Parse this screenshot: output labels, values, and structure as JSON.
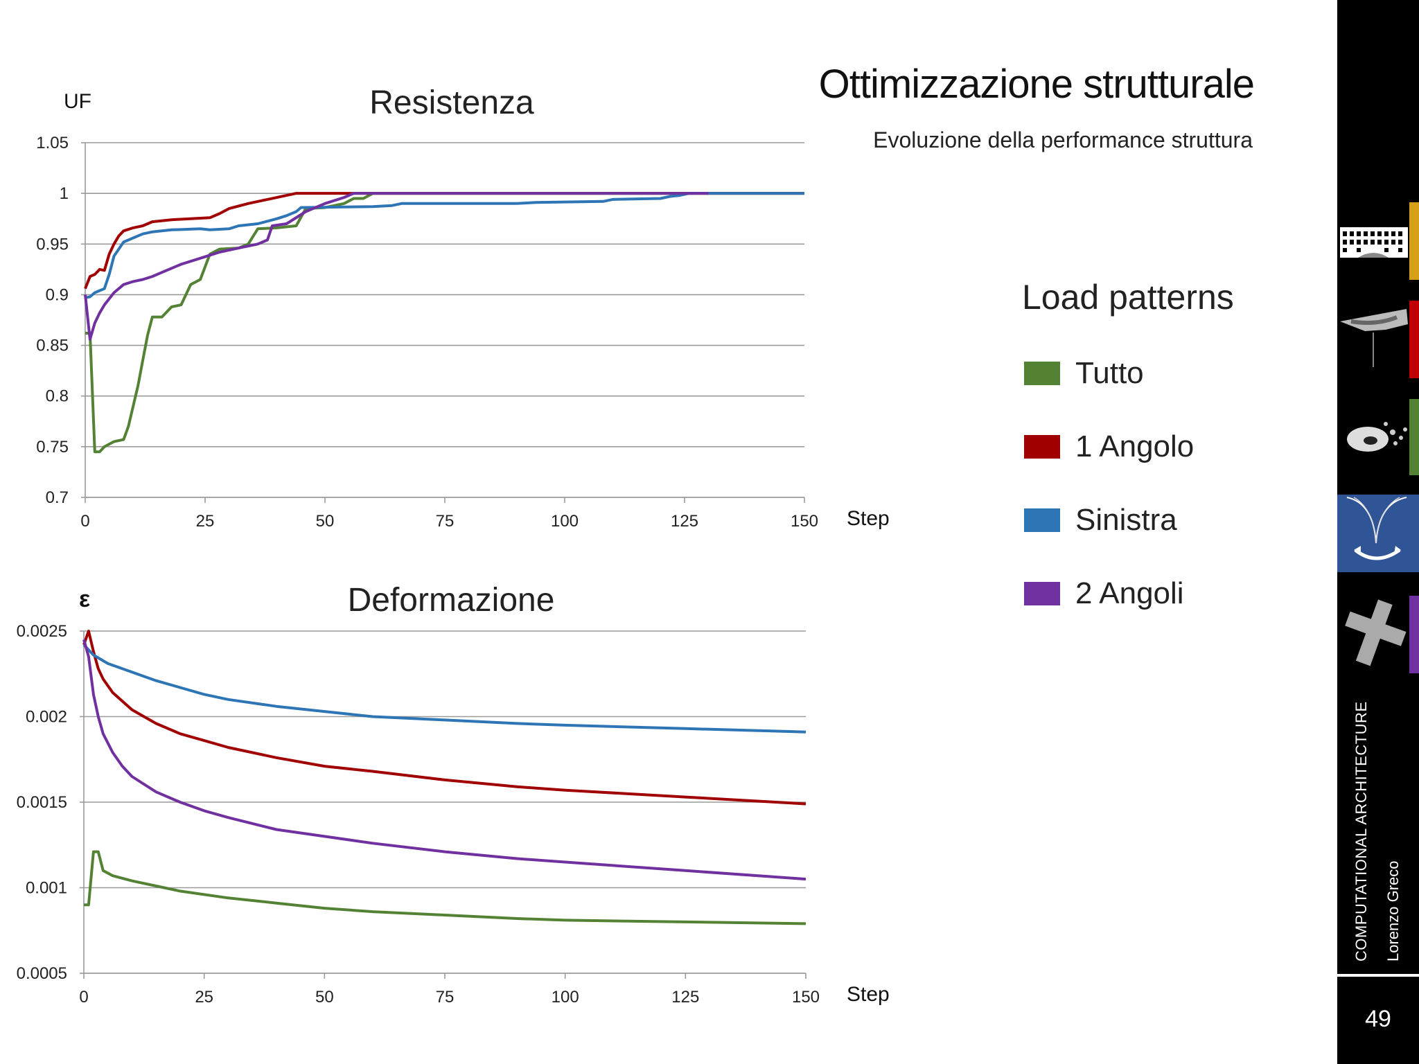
{
  "slide": {
    "title": "Ottimizzazione strutturale",
    "subtitle": "Evoluzione della performance struttura",
    "page_number": "49",
    "sidebar_course": "COMPUTATIONAL ARCHITECTURE",
    "sidebar_author": "Lorenzo Greco"
  },
  "legend": {
    "title": "Load patterns",
    "items": [
      {
        "label": "Tutto",
        "color": "#548235"
      },
      {
        "label": "1 Angolo",
        "color": "#a00000"
      },
      {
        "label": "Sinistra",
        "color": "#2e75b6"
      },
      {
        "label": "2 Angoli",
        "color": "#7030a0"
      }
    ]
  },
  "sidebar_thumbs": [
    {
      "icon": "building-facade-thumbnail",
      "bar_color": "#d4a017"
    },
    {
      "icon": "shell-surface-thumbnail",
      "bar_color": "#c00000"
    },
    {
      "icon": "scattered-shapes-thumbnail",
      "bar_color": "#548235"
    },
    {
      "icon": "funnel-rotation-thumbnail",
      "bar_color": "#2f5597"
    },
    {
      "icon": "cross-block-thumbnail",
      "bar_color": "#7030a0"
    }
  ],
  "chart_data": [
    {
      "type": "line",
      "title": "Resistenza",
      "ylabel": "UF",
      "xlabel": "Step",
      "xlim": [
        0,
        150
      ],
      "ylim": [
        0.7,
        1.05
      ],
      "xticks": [
        "0",
        "25",
        "50",
        "75",
        "100",
        "125",
        "150"
      ],
      "yticks": [
        "0.7",
        "0.75",
        "0.8",
        "0.85",
        "0.9",
        "0.95",
        "1",
        "1.05"
      ],
      "grid": true,
      "series": [
        {
          "name": "Tutto",
          "color": "#548235",
          "points": [
            [
              0,
              0.862
            ],
            [
              1,
              0.862
            ],
            [
              2,
              0.745
            ],
            [
              3,
              0.745
            ],
            [
              4,
              0.75
            ],
            [
              6,
              0.755
            ],
            [
              8,
              0.757
            ],
            [
              9,
              0.77
            ],
            [
              10,
              0.79
            ],
            [
              11,
              0.81
            ],
            [
              12,
              0.835
            ],
            [
              13,
              0.86
            ],
            [
              14,
              0.878
            ],
            [
              16,
              0.878
            ],
            [
              18,
              0.888
            ],
            [
              20,
              0.89
            ],
            [
              22,
              0.91
            ],
            [
              24,
              0.915
            ],
            [
              26,
              0.94
            ],
            [
              28,
              0.945
            ],
            [
              32,
              0.946
            ],
            [
              34,
              0.95
            ],
            [
              36,
              0.965
            ],
            [
              40,
              0.966
            ],
            [
              44,
              0.968
            ],
            [
              46,
              0.985
            ],
            [
              50,
              0.986
            ],
            [
              54,
              0.99
            ],
            [
              56,
              0.995
            ],
            [
              58,
              0.995
            ],
            [
              60,
              1
            ],
            [
              150,
              1
            ]
          ]
        },
        {
          "name": "1 Angolo",
          "color": "#a00000",
          "points": [
            [
              0,
              0.906
            ],
            [
              1,
              0.918
            ],
            [
              2,
              0.92
            ],
            [
              3,
              0.925
            ],
            [
              4,
              0.924
            ],
            [
              5,
              0.94
            ],
            [
              6,
              0.95
            ],
            [
              7,
              0.958
            ],
            [
              8,
              0.963
            ],
            [
              10,
              0.966
            ],
            [
              12,
              0.968
            ],
            [
              14,
              0.972
            ],
            [
              18,
              0.974
            ],
            [
              22,
              0.975
            ],
            [
              26,
              0.976
            ],
            [
              28,
              0.98
            ],
            [
              30,
              0.985
            ],
            [
              34,
              0.99
            ],
            [
              38,
              0.994
            ],
            [
              42,
              0.998
            ],
            [
              44,
              1
            ],
            [
              150,
              1
            ]
          ]
        },
        {
          "name": "Sinistra",
          "color": "#2e75b6",
          "points": [
            [
              0,
              0.897
            ],
            [
              1,
              0.898
            ],
            [
              2,
              0.902
            ],
            [
              4,
              0.906
            ],
            [
              5,
              0.92
            ],
            [
              6,
              0.938
            ],
            [
              8,
              0.952
            ],
            [
              10,
              0.956
            ],
            [
              12,
              0.96
            ],
            [
              14,
              0.962
            ],
            [
              18,
              0.964
            ],
            [
              24,
              0.965
            ],
            [
              26,
              0.964
            ],
            [
              30,
              0.965
            ],
            [
              32,
              0.968
            ],
            [
              36,
              0.97
            ],
            [
              40,
              0.975
            ],
            [
              42,
              0.978
            ],
            [
              44,
              0.982
            ],
            [
              45,
              0.986
            ],
            [
              60,
              0.987
            ],
            [
              64,
              0.988
            ],
            [
              66,
              0.99
            ],
            [
              90,
              0.99
            ],
            [
              94,
              0.991
            ],
            [
              108,
              0.992
            ],
            [
              110,
              0.994
            ],
            [
              120,
              0.995
            ],
            [
              122,
              0.997
            ],
            [
              124,
              0.998
            ],
            [
              126,
              1
            ],
            [
              150,
              1
            ]
          ]
        },
        {
          "name": "2 Angoli",
          "color": "#7030a0",
          "points": [
            [
              0,
              0.9
            ],
            [
              1,
              0.856
            ],
            [
              2,
              0.872
            ],
            [
              3,
              0.882
            ],
            [
              4,
              0.89
            ],
            [
              6,
              0.902
            ],
            [
              8,
              0.91
            ],
            [
              10,
              0.913
            ],
            [
              12,
              0.915
            ],
            [
              14,
              0.918
            ],
            [
              16,
              0.922
            ],
            [
              20,
              0.93
            ],
            [
              24,
              0.936
            ],
            [
              28,
              0.942
            ],
            [
              32,
              0.946
            ],
            [
              36,
              0.95
            ],
            [
              38,
              0.954
            ],
            [
              39,
              0.968
            ],
            [
              42,
              0.97
            ],
            [
              46,
              0.982
            ],
            [
              50,
              0.99
            ],
            [
              54,
              0.996
            ],
            [
              56,
              1
            ],
            [
              130,
              1
            ]
          ]
        }
      ]
    },
    {
      "type": "line",
      "title": "Deformazione",
      "ylabel": "ε",
      "xlabel": "Step",
      "xlim": [
        0,
        150
      ],
      "ylim": [
        0.0005,
        0.0025
      ],
      "xticks": [
        "0",
        "25",
        "50",
        "75",
        "100",
        "125",
        "150"
      ],
      "yticks": [
        "0.0005",
        "0.001",
        "0.0015",
        "0.002",
        "0.0025"
      ],
      "grid": true,
      "series": [
        {
          "name": "Tutto",
          "color": "#548235",
          "points": [
            [
              0,
              0.0009
            ],
            [
              1,
              0.0009
            ],
            [
              2,
              0.00121
            ],
            [
              3,
              0.00121
            ],
            [
              4,
              0.0011
            ],
            [
              6,
              0.00107
            ],
            [
              10,
              0.00104
            ],
            [
              15,
              0.00101
            ],
            [
              20,
              0.00098
            ],
            [
              30,
              0.00094
            ],
            [
              40,
              0.00091
            ],
            [
              50,
              0.00088
            ],
            [
              60,
              0.00086
            ],
            [
              75,
              0.00084
            ],
            [
              90,
              0.00082
            ],
            [
              100,
              0.00081
            ],
            [
              125,
              0.0008
            ],
            [
              150,
              0.00079
            ]
          ]
        },
        {
          "name": "1 Angolo",
          "color": "#a00000",
          "points": [
            [
              0,
              0.00242
            ],
            [
              1,
              0.0025
            ],
            [
              2,
              0.00238
            ],
            [
              3,
              0.00228
            ],
            [
              4,
              0.00222
            ],
            [
              6,
              0.00214
            ],
            [
              8,
              0.00209
            ],
            [
              10,
              0.00204
            ],
            [
              15,
              0.00196
            ],
            [
              20,
              0.0019
            ],
            [
              25,
              0.00186
            ],
            [
              30,
              0.00182
            ],
            [
              40,
              0.00176
            ],
            [
              50,
              0.00171
            ],
            [
              60,
              0.00168
            ],
            [
              75,
              0.00163
            ],
            [
              90,
              0.00159
            ],
            [
              100,
              0.00157
            ],
            [
              125,
              0.00153
            ],
            [
              150,
              0.00149
            ]
          ]
        },
        {
          "name": "Sinistra",
          "color": "#2e75b6",
          "points": [
            [
              0,
              0.00242
            ],
            [
              2,
              0.00236
            ],
            [
              5,
              0.00231
            ],
            [
              10,
              0.00226
            ],
            [
              15,
              0.00221
            ],
            [
              20,
              0.00217
            ],
            [
              25,
              0.00213
            ],
            [
              30,
              0.0021
            ],
            [
              40,
              0.00206
            ],
            [
              50,
              0.00203
            ],
            [
              60,
              0.002
            ],
            [
              75,
              0.00198
            ],
            [
              90,
              0.00196
            ],
            [
              100,
              0.00195
            ],
            [
              125,
              0.00193
            ],
            [
              150,
              0.00191
            ]
          ]
        },
        {
          "name": "2 Angoli",
          "color": "#7030a0",
          "points": [
            [
              0,
              0.00245
            ],
            [
              1,
              0.00235
            ],
            [
              2,
              0.00213
            ],
            [
              3,
              0.002
            ],
            [
              4,
              0.0019
            ],
            [
              6,
              0.00179
            ],
            [
              8,
              0.00171
            ],
            [
              10,
              0.00165
            ],
            [
              15,
              0.00156
            ],
            [
              20,
              0.0015
            ],
            [
              25,
              0.00145
            ],
            [
              30,
              0.00141
            ],
            [
              40,
              0.00134
            ],
            [
              50,
              0.0013
            ],
            [
              60,
              0.00126
            ],
            [
              75,
              0.00121
            ],
            [
              90,
              0.00117
            ],
            [
              100,
              0.00115
            ],
            [
              125,
              0.0011
            ],
            [
              150,
              0.00105
            ]
          ]
        }
      ]
    }
  ]
}
